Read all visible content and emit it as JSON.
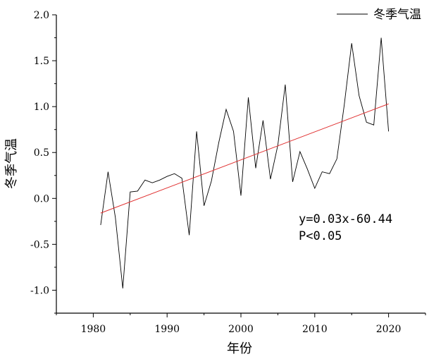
{
  "chart_data": {
    "type": "line",
    "xlabel": "年份",
    "ylabel": "冬季气温",
    "xlim": [
      1975,
      2025
    ],
    "ylim": [
      -1.25,
      2.0
    ],
    "xticks": [
      1980,
      1990,
      2000,
      2010,
      2020
    ],
    "xtick_labels": [
      "1980",
      "1990",
      "2000",
      "2010",
      "2020"
    ],
    "yticks": [
      -1.0,
      -0.5,
      0.0,
      0.5,
      1.0,
      1.5,
      2.0
    ],
    "ytick_labels": [
      "-1.0",
      "-0.5",
      "0.0",
      "0.5",
      "1.0",
      "1.5",
      "2.0"
    ],
    "legend_position": "top-right",
    "series": [
      {
        "name": "冬季气温",
        "color": "#000000",
        "x": [
          1981,
          1982,
          1983,
          1984,
          1985,
          1986,
          1987,
          1988,
          1989,
          1990,
          1991,
          1992,
          1993,
          1994,
          1995,
          1996,
          1997,
          1998,
          1999,
          2000,
          2001,
          2002,
          2003,
          2004,
          2005,
          2006,
          2007,
          2008,
          2009,
          2010,
          2011,
          2012,
          2013,
          2014,
          2015,
          2016,
          2017,
          2018,
          2019,
          2020
        ],
        "values": [
          -0.29,
          0.29,
          -0.21,
          -0.98,
          0.07,
          0.08,
          0.2,
          0.17,
          0.2,
          0.24,
          0.27,
          0.22,
          -0.4,
          0.73,
          -0.08,
          0.19,
          0.61,
          0.97,
          0.73,
          0.03,
          1.1,
          0.33,
          0.85,
          0.21,
          0.58,
          1.24,
          0.18,
          0.51,
          0.32,
          0.11,
          0.29,
          0.27,
          0.43,
          1.02,
          1.69,
          1.12,
          0.83,
          0.8,
          1.75,
          0.73
        ]
      }
    ],
    "trendline": {
      "color": "#e03030",
      "x": [
        1981,
        2020
      ],
      "y": [
        -0.16,
        1.03
      ]
    },
    "annotations": [
      "y=0.03x-60.44",
      "P<0.05"
    ]
  }
}
